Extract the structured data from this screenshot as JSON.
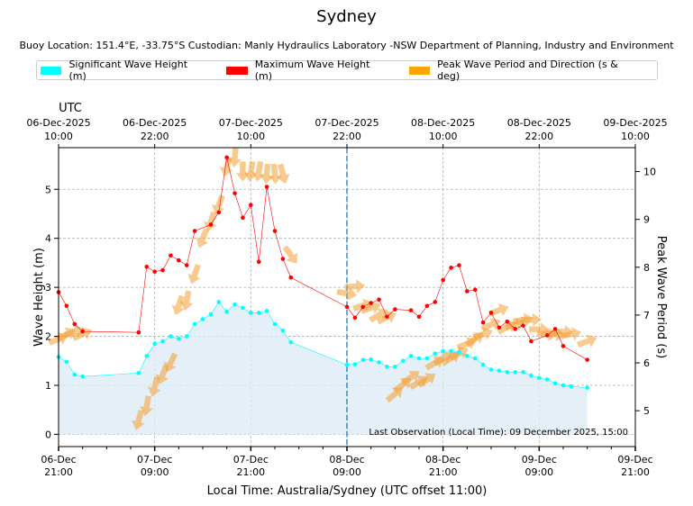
{
  "chart_data": {
    "type": "line",
    "title": "Sydney",
    "subtitle": "Buoy Location: 151.4°E, -33.75°S     Custodian: Manly Hydraulics Laboratory -NSW Department of Planning, Industry and Environment",
    "legend": {
      "placement": "top",
      "items": [
        {
          "label": "Significant Wave Height (m)",
          "color": "#00ffff"
        },
        {
          "label": "Maximum Wave Height (m)",
          "color": "#ff0000"
        },
        {
          "label": "Peak Wave Period and Direction (s & deg)",
          "color": "#ffa500"
        }
      ]
    },
    "xlabel": "Local Time: Australia/Sydney (UTC offset 11:00)",
    "ylabel": "Wave Height (m)",
    "ylabel_right": "Peak Wave Period (s)",
    "top_axis_label": "UTC",
    "x_unit": "hours from 06-Dec 21:00 local",
    "xlim": [
      0,
      72
    ],
    "ylim": [
      -0.25,
      5.85
    ],
    "ylim_right": [
      4.25,
      10.5
    ],
    "y_ticks": [
      0,
      1,
      2,
      3,
      4,
      5
    ],
    "y_ticks_right": [
      5,
      6,
      7,
      8,
      9,
      10
    ],
    "x_ticks": [
      {
        "h": 0,
        "date": "06-Dec",
        "time": "21:00"
      },
      {
        "h": 12,
        "date": "07-Dec",
        "time": "09:00"
      },
      {
        "h": 24,
        "date": "07-Dec",
        "time": "21:00"
      },
      {
        "h": 36,
        "date": "08-Dec",
        "time": "09:00"
      },
      {
        "h": 48,
        "date": "08-Dec",
        "time": "21:00"
      },
      {
        "h": 60,
        "date": "09-Dec",
        "time": "09:00"
      },
      {
        "h": 72,
        "date": "09-Dec",
        "time": "21:00"
      }
    ],
    "x_ticks_top": [
      {
        "h": 0,
        "date": "06-Dec-2025",
        "time": "10:00"
      },
      {
        "h": 12,
        "date": "06-Dec-2025",
        "time": "22:00"
      },
      {
        "h": 24,
        "date": "07-Dec-2025",
        "time": "10:00"
      },
      {
        "h": 36,
        "date": "07-Dec-2025",
        "time": "22:00"
      },
      {
        "h": 48,
        "date": "08-Dec-2025",
        "time": "10:00"
      },
      {
        "h": 60,
        "date": "08-Dec-2025",
        "time": "22:00"
      },
      {
        "h": 72,
        "date": "09-Dec-2025",
        "time": "10:00"
      }
    ],
    "grid": true,
    "now_line_h": 36,
    "annotation": "Last Observation (Local Time): 09 December 2025, 15:00",
    "hs": {
      "name": "Significant Wave Height (m)",
      "x": [
        0,
        1,
        2,
        3,
        10,
        11,
        12,
        13,
        14,
        15,
        16,
        17,
        18,
        19,
        20,
        21,
        22,
        23,
        24,
        25,
        26,
        27,
        28,
        29,
        36,
        37,
        38,
        39,
        40,
        41,
        42,
        43,
        44,
        45,
        46,
        47,
        48,
        49,
        50,
        51,
        52,
        53,
        54,
        55,
        56,
        57,
        58,
        59,
        60,
        61,
        62,
        63,
        64,
        66
      ],
      "y": [
        1.58,
        1.48,
        1.22,
        1.18,
        1.25,
        1.6,
        1.85,
        1.9,
        2.0,
        1.95,
        2.0,
        2.25,
        2.35,
        2.45,
        2.7,
        2.5,
        2.65,
        2.58,
        2.48,
        2.48,
        2.52,
        2.25,
        2.12,
        1.88,
        1.42,
        1.43,
        1.52,
        1.53,
        1.47,
        1.38,
        1.38,
        1.5,
        1.6,
        1.55,
        1.55,
        1.65,
        1.7,
        1.7,
        1.68,
        1.6,
        1.55,
        1.42,
        1.32,
        1.3,
        1.27,
        1.27,
        1.27,
        1.2,
        1.15,
        1.12,
        1.04,
        1.0,
        0.98,
        0.95
      ]
    },
    "hmax": {
      "name": "Maximum Wave Height (m)",
      "x": [
        0,
        1,
        2,
        3,
        10,
        11,
        12,
        13,
        14,
        15,
        16,
        17,
        19,
        20,
        21,
        22,
        23,
        24,
        25,
        26,
        27,
        28,
        29,
        36,
        37,
        38,
        39,
        40,
        41,
        42,
        44,
        45,
        46,
        47,
        48,
        49,
        50,
        51,
        52,
        53,
        54,
        55,
        56,
        57,
        58,
        59,
        61,
        62,
        63,
        66
      ],
      "y": [
        2.9,
        2.62,
        2.25,
        2.1,
        2.08,
        3.42,
        3.32,
        3.35,
        3.65,
        3.55,
        3.45,
        4.15,
        4.28,
        4.53,
        5.65,
        4.92,
        4.42,
        4.68,
        3.52,
        5.05,
        4.15,
        3.58,
        3.2,
        2.6,
        2.38,
        2.6,
        2.68,
        2.75,
        2.4,
        2.55,
        2.53,
        2.4,
        2.62,
        2.7,
        3.15,
        3.4,
        3.45,
        2.92,
        2.95,
        2.28,
        2.48,
        2.18,
        2.3,
        2.15,
        2.22,
        1.9,
        2.02,
        2.15,
        1.8,
        1.52
      ]
    },
    "direction": {
      "name": "Peak Wave Period and Direction (s & deg)",
      "x": [
        0,
        1,
        2,
        3,
        10,
        11,
        12,
        13,
        14,
        15,
        16,
        17,
        18,
        19,
        20,
        21,
        22,
        23,
        24,
        25,
        26,
        27,
        28,
        29,
        36,
        37,
        38,
        39,
        40,
        41,
        42,
        43,
        44,
        45,
        46,
        47,
        48,
        49,
        50,
        51,
        52,
        53,
        54,
        55,
        56,
        57,
        58,
        59,
        60,
        61,
        62,
        63,
        64,
        66
      ],
      "period": [
        6.5,
        6.6,
        6.65,
        6.6,
        4.8,
        5.1,
        5.5,
        5.75,
        6.0,
        7.2,
        7.3,
        7.85,
        8.6,
        8.95,
        9.3,
        10.1,
        10.3,
        10.0,
        10.0,
        10.0,
        9.95,
        9.95,
        9.95,
        8.25,
        7.45,
        7.6,
        7.2,
        7.15,
        7.0,
        6.95,
        5.35,
        5.55,
        5.7,
        5.6,
        5.65,
        6.0,
        6.1,
        6.1,
        6.2,
        6.4,
        6.5,
        6.6,
        6.8,
        7.1,
        6.75,
        6.8,
        6.9,
        6.9,
        6.7,
        6.6,
        6.6,
        6.65,
        6.6,
        6.45
      ],
      "dir_deg": [
        68,
        60,
        70,
        65,
        195,
        190,
        195,
        200,
        205,
        198,
        190,
        200,
        202,
        198,
        200,
        195,
        185,
        180,
        190,
        190,
        185,
        175,
        165,
        145,
        100,
        85,
        72,
        70,
        60,
        65,
        50,
        52,
        55,
        58,
        55,
        60,
        58,
        57,
        62,
        68,
        55,
        70,
        65,
        70,
        60,
        72,
        80,
        88,
        90,
        95,
        100,
        90,
        78,
        70
      ]
    }
  }
}
